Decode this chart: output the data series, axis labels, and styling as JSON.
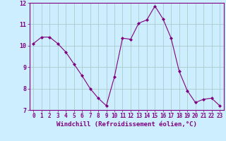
{
  "x": [
    0,
    1,
    2,
    3,
    4,
    5,
    6,
    7,
    8,
    9,
    10,
    11,
    12,
    13,
    14,
    15,
    16,
    17,
    18,
    19,
    20,
    21,
    22,
    23
  ],
  "y": [
    10.1,
    10.4,
    10.4,
    10.1,
    9.7,
    9.15,
    8.6,
    8.0,
    7.55,
    7.2,
    8.55,
    10.35,
    10.3,
    11.05,
    11.2,
    11.85,
    11.25,
    10.35,
    8.8,
    7.9,
    7.35,
    7.5,
    7.55,
    7.2
  ],
  "line_color": "#800080",
  "marker": "D",
  "marker_size": 2,
  "bg_color": "#cceeff",
  "grid_color": "#aacccc",
  "xlabel": "Windchill (Refroidissement éolien,°C)",
  "xlabel_color": "#800080",
  "tick_color": "#800080",
  "ylim": [
    7,
    12
  ],
  "xlim": [
    -0.5,
    23.5
  ],
  "yticks": [
    7,
    8,
    9,
    10,
    11,
    12
  ],
  "xticks": [
    0,
    1,
    2,
    3,
    4,
    5,
    6,
    7,
    8,
    9,
    10,
    11,
    12,
    13,
    14,
    15,
    16,
    17,
    18,
    19,
    20,
    21,
    22,
    23
  ],
  "tick_fontsize": 5.5,
  "xlabel_fontsize": 6.5,
  "ytick_fontsize": 6
}
